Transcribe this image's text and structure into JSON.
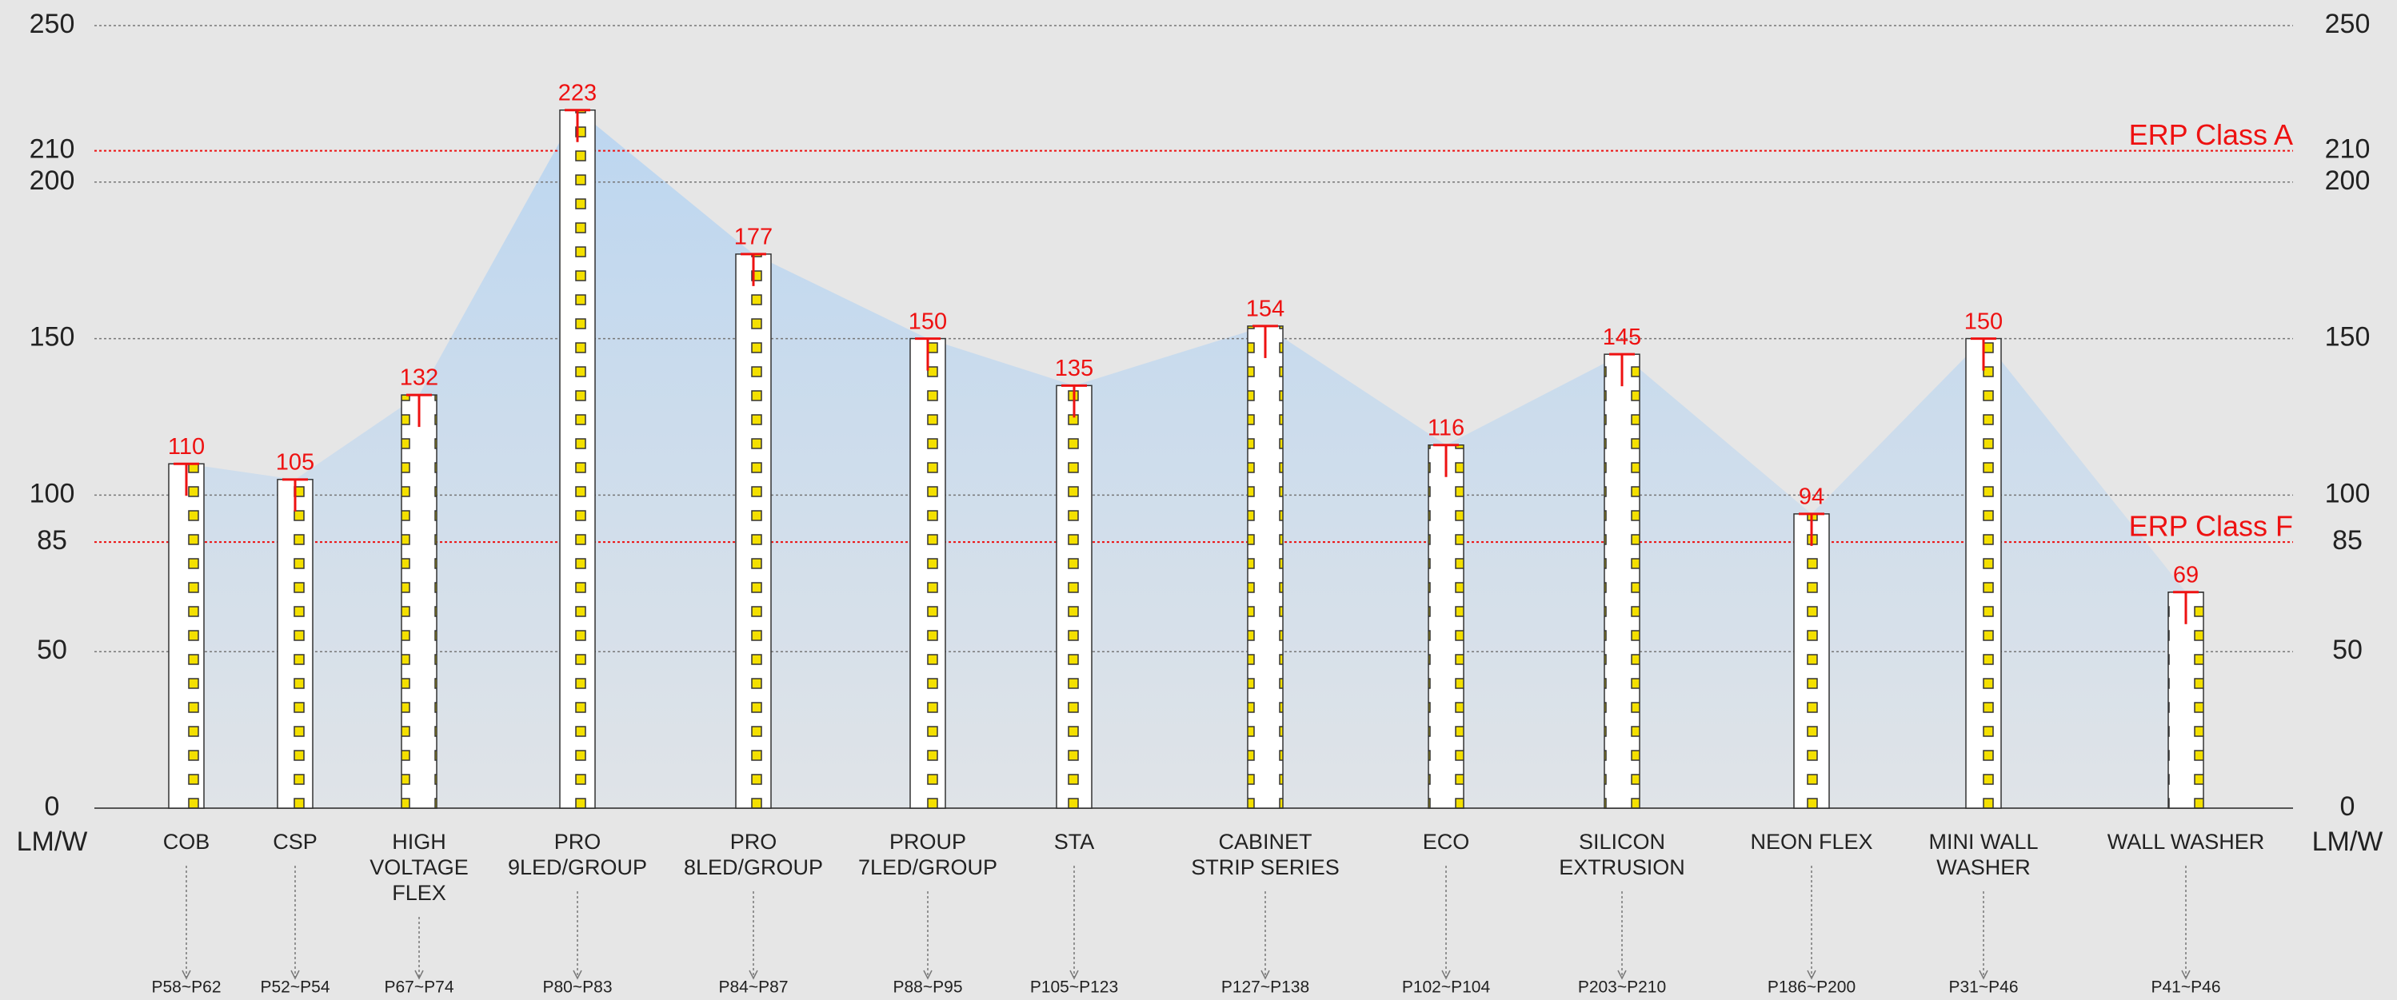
{
  "chart_data": {
    "type": "bar",
    "categories": [
      "COB",
      "CSP",
      "HIGH\nVOLTAGE\nFLEX",
      "PRO\n9LED/GROUP",
      "PRO\n8LED/GROUP",
      "PROUP\n7LED/GROUP",
      "STA",
      "CABINET\nSTRIP SERIES",
      "ECO",
      "SILICON\nEXTRUSION",
      "NEON FLEX",
      "MINI WALL\nWASHER",
      "WALL WASHER"
    ],
    "values": [
      110,
      105,
      132,
      223,
      177,
      150,
      135,
      154,
      116,
      145,
      94,
      150,
      69
    ],
    "page_refs": [
      "P58~P62",
      "P52~P54",
      "P67~P74",
      "P80~P83",
      "P84~P87",
      "P88~P95",
      "P105~P123",
      "P127~P138",
      "P102~P104",
      "P203~P210",
      "P186~P200",
      "P31~P46",
      "P41~P46"
    ],
    "ylim": [
      0,
      250
    ],
    "yticks": [
      0,
      50,
      85,
      100,
      150,
      200,
      210,
      250
    ],
    "y_axis_label": "LM/W",
    "reference_lines": [
      {
        "value": 210,
        "label": "ERP Class A"
      },
      {
        "value": 85,
        "label": "ERP Class F"
      }
    ],
    "value_color": "#ee1111",
    "area_color": "#bcd6f0",
    "grid": true
  }
}
